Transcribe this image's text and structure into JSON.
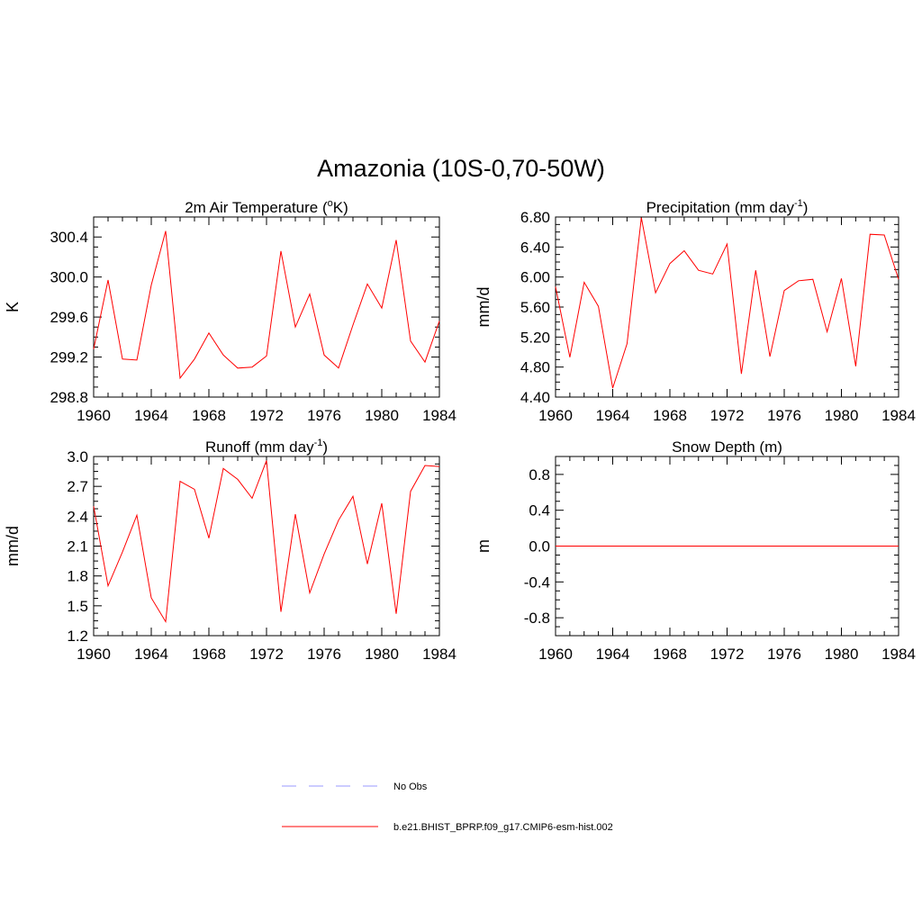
{
  "figure_title": "Amazonia (10S-0,70-50W)",
  "colors": {
    "series": "#ff0000",
    "obs": "#9999ff",
    "axis": "#000000"
  },
  "chart_data": [
    {
      "type": "line",
      "id": "temp",
      "title_main": "2m Air Temperature (",
      "title_sup": "o",
      "title_tail": "K)",
      "ylabel": "K",
      "xlim": [
        1960,
        1984
      ],
      "ylim": [
        298.8,
        300.6
      ],
      "xticks": [
        1960,
        1964,
        1968,
        1972,
        1976,
        1980,
        1984
      ],
      "yticks": [
        298.8,
        299.2,
        299.6,
        300.0,
        300.4
      ],
      "ytick_labels": [
        "298.8",
        "299.2",
        "299.6",
        "300.0",
        "300.4"
      ],
      "series": [
        {
          "name": "b.e21.BHIST_BPRP.f09_g17.CMIP6-esm-hist.002",
          "x": [
            1960,
            1961,
            1962,
            1963,
            1964,
            1965,
            1966,
            1967,
            1968,
            1969,
            1970,
            1971,
            1972,
            1973,
            1974,
            1975,
            1976,
            1977,
            1978,
            1979,
            1980,
            1981,
            1982,
            1983,
            1984
          ],
          "values": [
            299.28,
            299.97,
            299.18,
            299.17,
            299.92,
            300.46,
            298.99,
            299.18,
            299.44,
            299.22,
            299.09,
            299.1,
            299.21,
            300.26,
            299.5,
            299.83,
            299.22,
            299.09,
            299.52,
            299.93,
            299.69,
            300.37,
            299.36,
            299.15,
            299.56
          ]
        }
      ]
    },
    {
      "type": "line",
      "id": "precip",
      "title_main": "Precipitation (mm day",
      "title_sup": "-1",
      "title_tail": ")",
      "ylabel": "mm/d",
      "xlim": [
        1960,
        1984
      ],
      "ylim": [
        4.4,
        6.8
      ],
      "xticks": [
        1960,
        1964,
        1968,
        1972,
        1976,
        1980,
        1984
      ],
      "yticks": [
        4.4,
        4.8,
        5.2,
        5.6,
        6.0,
        6.4,
        6.8
      ],
      "ytick_labels": [
        "4.40",
        "4.80",
        "5.20",
        "5.60",
        "6.00",
        "6.40",
        "6.80"
      ],
      "series": [
        {
          "name": "b.e21.BHIST_BPRP.f09_g17.CMIP6-esm-hist.002",
          "x": [
            1960,
            1961,
            1962,
            1963,
            1964,
            1965,
            1966,
            1967,
            1968,
            1969,
            1970,
            1971,
            1972,
            1973,
            1974,
            1975,
            1976,
            1977,
            1978,
            1979,
            1980,
            1981,
            1982,
            1983,
            1984
          ],
          "values": [
            5.87,
            4.93,
            5.93,
            5.61,
            4.52,
            5.11,
            6.79,
            5.79,
            6.18,
            6.35,
            6.09,
            6.04,
            6.44,
            4.71,
            6.09,
            4.94,
            5.82,
            5.95,
            5.97,
            5.27,
            5.98,
            4.81,
            6.57,
            6.56,
            5.97
          ]
        }
      ]
    },
    {
      "type": "line",
      "id": "runoff",
      "title_main": "Runoff (mm day",
      "title_sup": "-1",
      "title_tail": ")",
      "ylabel": "mm/d",
      "xlim": [
        1960,
        1984
      ],
      "ylim": [
        1.2,
        3.0
      ],
      "xticks": [
        1960,
        1964,
        1968,
        1972,
        1976,
        1980,
        1984
      ],
      "yticks": [
        1.2,
        1.5,
        1.8,
        2.1,
        2.4,
        2.7,
        3.0
      ],
      "ytick_labels": [
        "1.2",
        "1.5",
        "1.8",
        "2.1",
        "2.4",
        "2.7",
        "3.0"
      ],
      "series": [
        {
          "name": "b.e21.BHIST_BPRP.f09_g17.CMIP6-esm-hist.002",
          "x": [
            1960,
            1961,
            1962,
            1963,
            1964,
            1965,
            1966,
            1967,
            1968,
            1969,
            1970,
            1971,
            1972,
            1973,
            1974,
            1975,
            1976,
            1977,
            1978,
            1979,
            1980,
            1981,
            1982,
            1983,
            1984
          ],
          "values": [
            2.5,
            1.7,
            2.04,
            2.41,
            1.58,
            1.34,
            2.75,
            2.67,
            2.18,
            2.88,
            2.77,
            2.58,
            2.96,
            1.44,
            2.42,
            1.63,
            2.02,
            2.36,
            2.6,
            1.92,
            2.53,
            1.42,
            2.65,
            2.91,
            2.9
          ]
        }
      ]
    },
    {
      "type": "line",
      "id": "snow",
      "title_main": "Snow Depth (m)",
      "title_sup": "",
      "title_tail": "",
      "ylabel": "m",
      "xlim": [
        1960,
        1984
      ],
      "ylim": [
        -1.0,
        1.0
      ],
      "xticks": [
        1960,
        1964,
        1968,
        1972,
        1976,
        1980,
        1984
      ],
      "yticks": [
        -0.8,
        -0.4,
        0.0,
        0.4,
        0.8
      ],
      "ytick_labels": [
        "-0.8",
        "-0.4",
        "0.0",
        "0.4",
        "0.8"
      ],
      "series": [
        {
          "name": "b.e21.BHIST_BPRP.f09_g17.CMIP6-esm-hist.002",
          "x": [
            1960,
            1961,
            1962,
            1963,
            1964,
            1965,
            1966,
            1967,
            1968,
            1969,
            1970,
            1971,
            1972,
            1973,
            1974,
            1975,
            1976,
            1977,
            1978,
            1979,
            1980,
            1981,
            1982,
            1983,
            1984
          ],
          "values": [
            0,
            0,
            0,
            0,
            0,
            0,
            0,
            0,
            0,
            0,
            0,
            0,
            0,
            0,
            0,
            0,
            0,
            0,
            0,
            0,
            0,
            0,
            0,
            0,
            0
          ]
        }
      ]
    }
  ],
  "legend": [
    {
      "label": "No Obs",
      "style": "dashed",
      "color": "#9999ff"
    },
    {
      "label": "b.e21.BHIST_BPRP.f09_g17.CMIP6-esm-hist.002",
      "style": "solid",
      "color": "#ff0000"
    }
  ]
}
